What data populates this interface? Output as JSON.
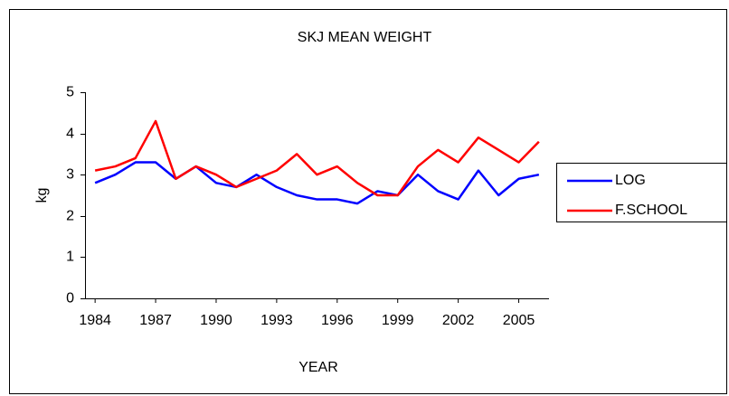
{
  "chart_data": {
    "type": "line",
    "title": "SKJ MEAN WEIGHT",
    "x_label": "YEAR",
    "y_label": "kg",
    "x": [
      1984,
      1985,
      1986,
      1987,
      1988,
      1989,
      1990,
      1991,
      1992,
      1993,
      1994,
      1995,
      1996,
      1997,
      1998,
      1999,
      2000,
      2001,
      2002,
      2003,
      2004,
      2005,
      2006
    ],
    "series": [
      {
        "name": "LOG",
        "color": "#0000ff",
        "values": [
          2.8,
          3.0,
          3.3,
          3.3,
          2.9,
          3.2,
          2.8,
          2.7,
          3.0,
          2.7,
          2.5,
          2.4,
          2.4,
          2.3,
          2.6,
          2.5,
          3.0,
          2.6,
          2.4,
          3.1,
          2.5,
          2.9,
          3.0
        ]
      },
      {
        "name": "F.SCHOOL",
        "color": "#ff0000",
        "values": [
          3.1,
          3.2,
          3.4,
          4.3,
          2.9,
          3.2,
          3.0,
          2.7,
          2.9,
          3.1,
          3.5,
          3.0,
          3.2,
          2.8,
          2.5,
          2.5,
          3.2,
          3.6,
          3.3,
          3.9,
          3.6,
          3.3,
          3.8
        ]
      }
    ],
    "xlim": [
      1983.5,
      2006.5
    ],
    "xticks": [
      1984,
      1987,
      1990,
      1993,
      1996,
      1999,
      2002,
      2005
    ],
    "ylim": [
      0,
      5
    ],
    "yticks": [
      0,
      1,
      2,
      3,
      4,
      5
    ],
    "legend": "right"
  }
}
